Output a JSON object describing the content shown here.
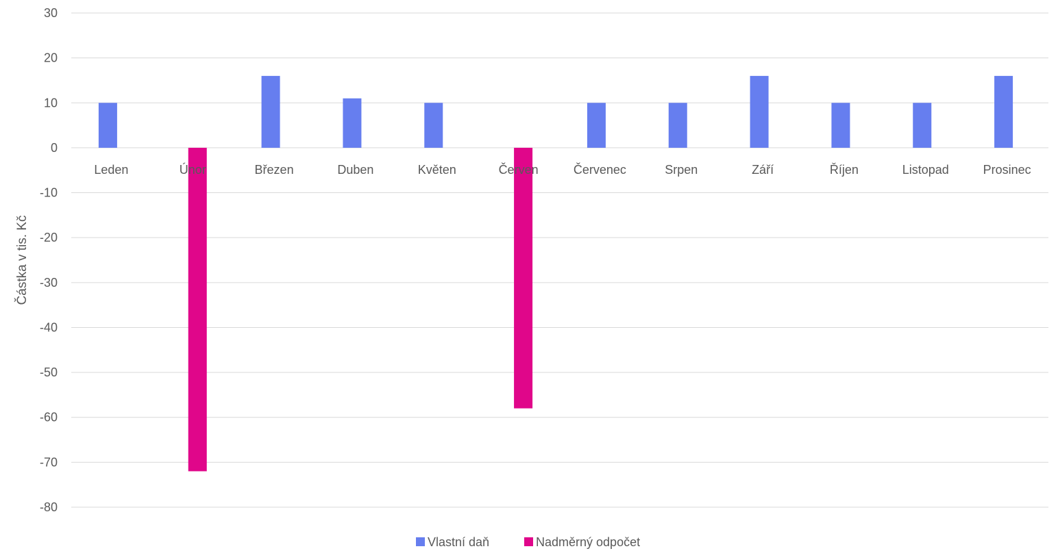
{
  "chart_data": {
    "type": "bar",
    "title": "",
    "xlabel": "",
    "ylabel": "Částka v tis. Kč",
    "ylim": [
      -80,
      30
    ],
    "yticks": [
      30,
      20,
      10,
      0,
      -10,
      -20,
      -30,
      -40,
      -50,
      -60,
      -70,
      -80
    ],
    "grid": true,
    "legend_position": "bottom",
    "categories": [
      "Leden",
      "Únor",
      "Březen",
      "Duben",
      "Květen",
      "Červen",
      "Červenec",
      "Srpen",
      "Září",
      "Říjen",
      "Listopad",
      "Prosinec"
    ],
    "series": [
      {
        "name": "Vlastní daň",
        "color": "#667eef",
        "values": [
          10,
          0,
          16,
          11,
          10,
          0,
          10,
          10,
          16,
          10,
          10,
          16
        ]
      },
      {
        "name": "Nadměrný odpočet",
        "color": "#e0068a",
        "values": [
          0,
          -72,
          0,
          0,
          0,
          -58,
          0,
          0,
          0,
          0,
          0,
          0
        ]
      }
    ]
  }
}
